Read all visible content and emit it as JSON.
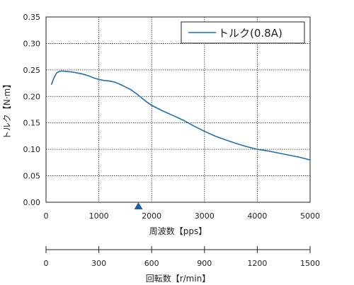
{
  "chart_data": {
    "type": "line",
    "xlabel": "周波数【pps】",
    "ylabel": "トルク【N·m】",
    "xlim": [
      0,
      5000
    ],
    "ylim": [
      0,
      0.35
    ],
    "x_ticks": [
      "0",
      "1000",
      "2000",
      "3000",
      "4000",
      "5000"
    ],
    "y_ticks": [
      "0.00",
      "0.05",
      "0.10",
      "0.15",
      "0.20",
      "0.25",
      "0.30",
      "0.35"
    ],
    "grid": true,
    "legend_position": "top-right",
    "marker": {
      "x": 1750,
      "color": "#1f5fa6"
    },
    "series": [
      {
        "name": "トルク(0.8A)",
        "color": "#1f6fb5",
        "points": [
          [
            100,
            0.222
          ],
          [
            150,
            0.235
          ],
          [
            200,
            0.244
          ],
          [
            250,
            0.247
          ],
          [
            300,
            0.248
          ],
          [
            400,
            0.247
          ],
          [
            500,
            0.246
          ],
          [
            600,
            0.244
          ],
          [
            700,
            0.242
          ],
          [
            800,
            0.239
          ],
          [
            900,
            0.235
          ],
          [
            1000,
            0.232
          ],
          [
            1100,
            0.23
          ],
          [
            1200,
            0.229
          ],
          [
            1300,
            0.227
          ],
          [
            1400,
            0.223
          ],
          [
            1500,
            0.218
          ],
          [
            1600,
            0.213
          ],
          [
            1700,
            0.206
          ],
          [
            1800,
            0.198
          ],
          [
            1900,
            0.19
          ],
          [
            2000,
            0.183
          ],
          [
            2200,
            0.173
          ],
          [
            2400,
            0.164
          ],
          [
            2600,
            0.155
          ],
          [
            2800,
            0.144
          ],
          [
            3000,
            0.134
          ],
          [
            3200,
            0.125
          ],
          [
            3400,
            0.118
          ],
          [
            3600,
            0.111
          ],
          [
            3800,
            0.105
          ],
          [
            4000,
            0.1
          ],
          [
            4200,
            0.097
          ],
          [
            4400,
            0.093
          ],
          [
            4600,
            0.089
          ],
          [
            4800,
            0.085
          ],
          [
            5000,
            0.08
          ]
        ]
      }
    ],
    "secondary_axis": {
      "label": "回転数【r/min】",
      "ticks": [
        "0",
        "300",
        "600",
        "900",
        "1200",
        "1500"
      ],
      "range": [
        0,
        1500
      ]
    }
  }
}
